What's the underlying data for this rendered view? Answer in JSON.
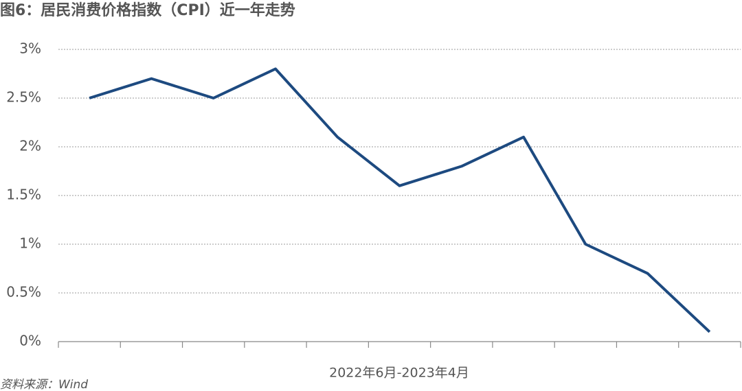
{
  "chart_data": {
    "type": "line",
    "title": "图6：居民消费价格指数（CPI）近一年走势",
    "x_label": "2022年6月-2023年4月",
    "source": "资料来源：Wind",
    "categories": [
      null,
      null,
      null,
      null,
      null,
      null,
      null,
      null,
      null,
      null,
      null
    ],
    "values": [
      2.5,
      2.7,
      2.5,
      2.8,
      2.1,
      1.6,
      1.8,
      2.1,
      1.0,
      0.7,
      0.1
    ],
    "color": "#1d4a80",
    "ylim": [
      0,
      3
    ],
    "yticks": [
      {
        "value": 0,
        "label": "0%"
      },
      {
        "value": 0.5,
        "label": "0.5%"
      },
      {
        "value": 1,
        "label": "1%"
      },
      {
        "value": 1.5,
        "label": "1.5%"
      },
      {
        "value": 2,
        "label": "2%"
      },
      {
        "value": 2.5,
        "label": "2.5%"
      },
      {
        "value": 3,
        "label": "3%"
      }
    ],
    "grid": true
  }
}
